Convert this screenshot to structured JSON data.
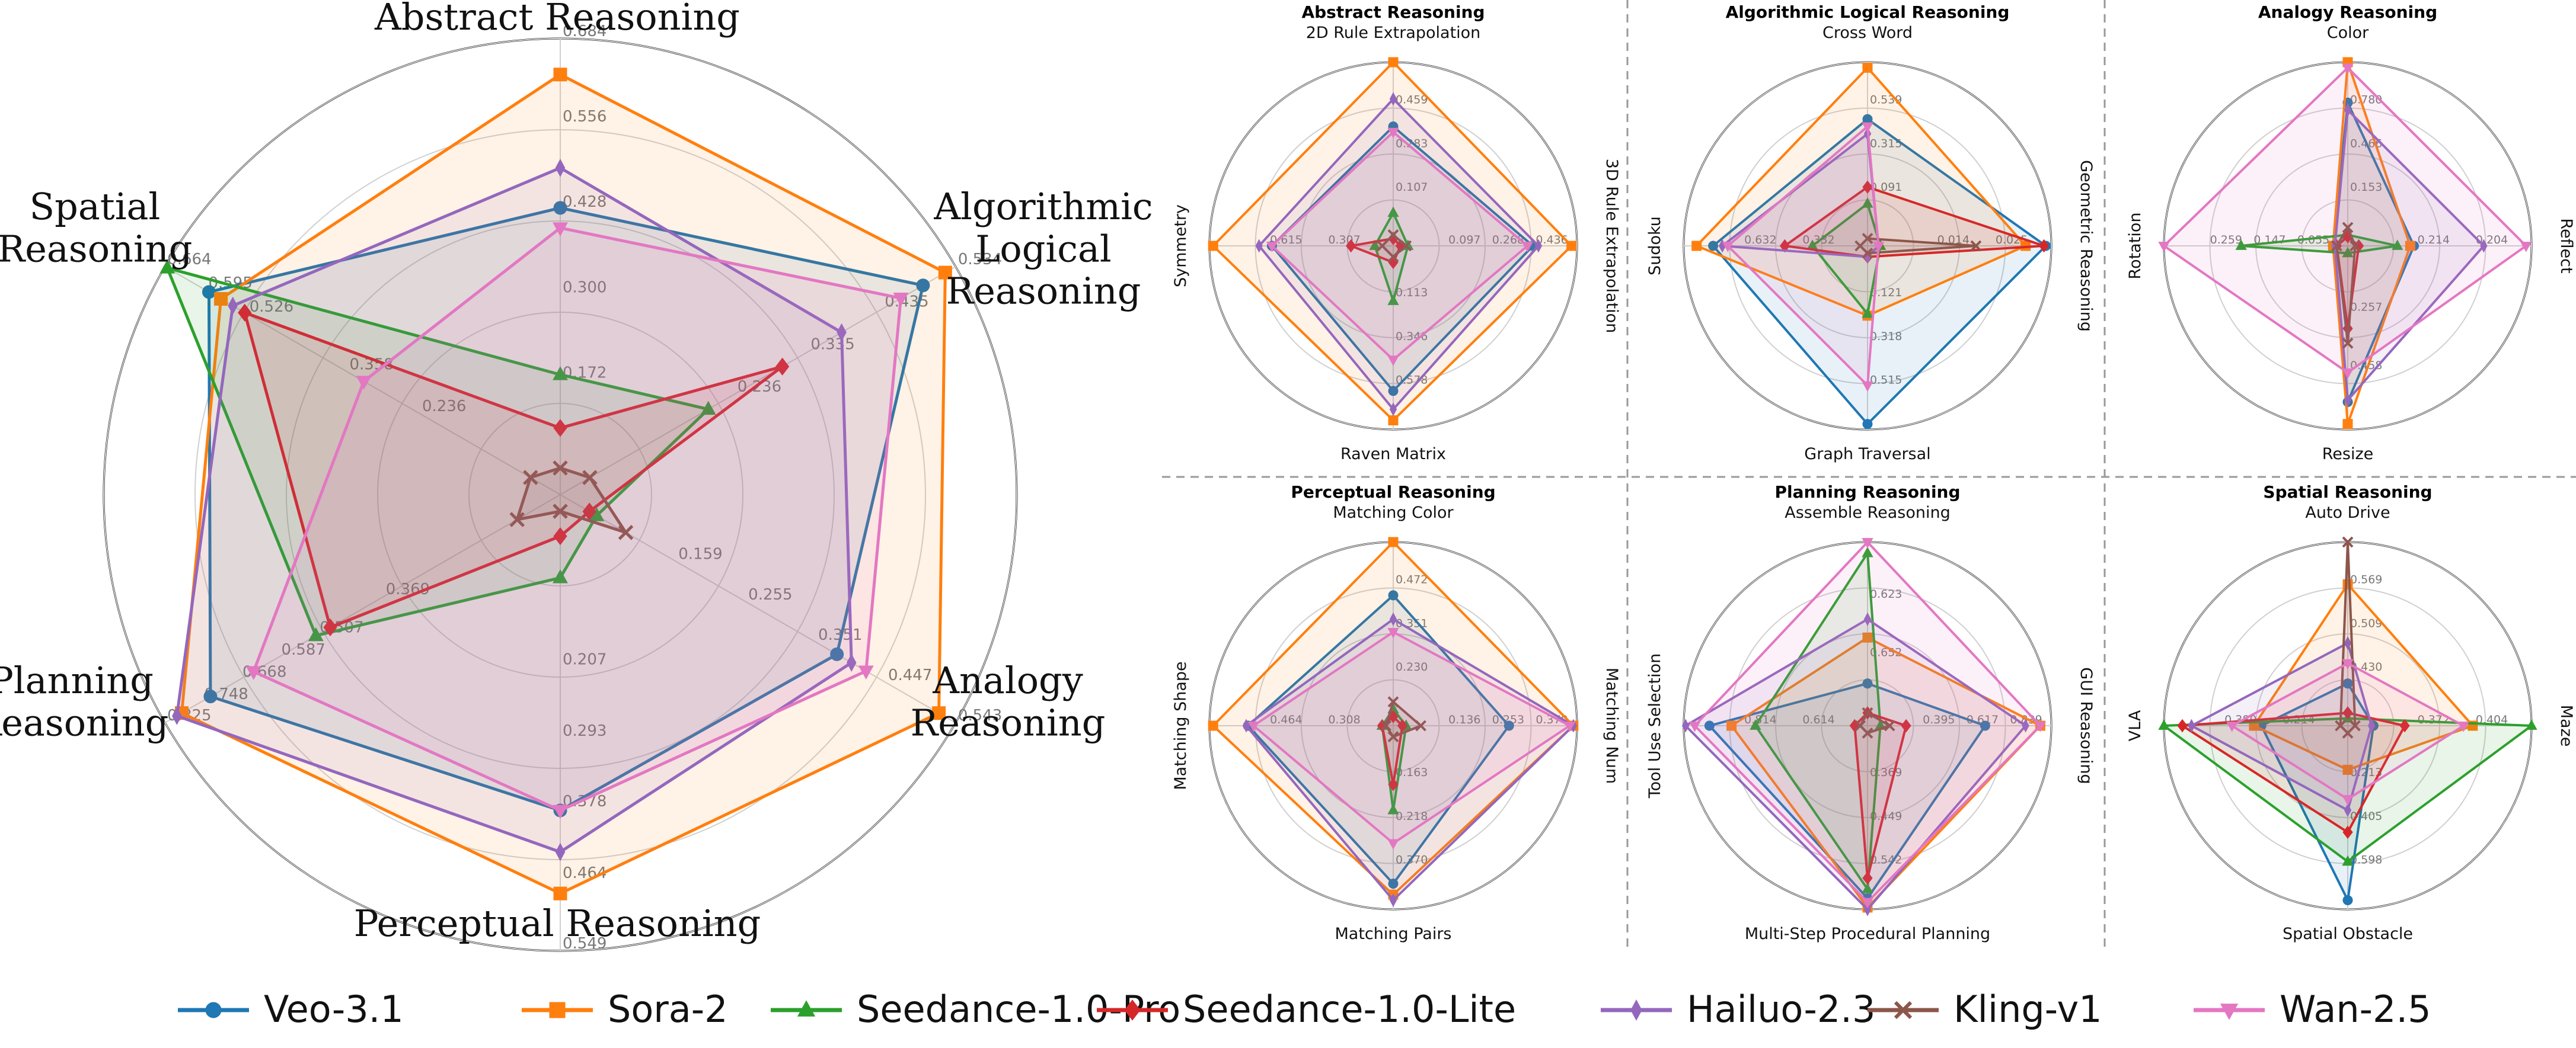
{
  "colors": {
    "Veo-3.1": "#1f77b4",
    "Sora-2": "#ff7f0e",
    "Seedance-1.0-Pro": "#2ca02c",
    "Seedance-1.0-Lite": "#d62728",
    "Hailuo-2.3": "#9467bd",
    "Kling-v1": "#8c564b",
    "Wan-2.5": "#e377c2"
  },
  "markers": {
    "Veo-3.1": "circle",
    "Sora-2": "square",
    "Seedance-1.0-Pro": "triangle-up",
    "Seedance-1.0-Lite": "diamond",
    "Hailuo-2.3": "diamond-thin",
    "Kling-v1": "x-cross",
    "Wan-2.5": "triangle-down"
  },
  "legend": {
    "items": [
      "Veo-3.1",
      "Sora-2",
      "Seedance-1.0-Pro",
      "Seedance-1.0-Lite",
      "Hailuo-2.3",
      "Kling-v1",
      "Wan-2.5"
    ],
    "placement": "bottom-center"
  },
  "chart_data": [
    {
      "type": "radar",
      "title": "",
      "axes": [
        "Abstract Reasoning",
        "Algorithmic Logical Reasoning",
        "Analogy Reasoning",
        "Perceptual Reasoning",
        "Planning Reasoning",
        "Spatial Reasoning"
      ],
      "axis_max": [
        0.684,
        0.534,
        0.543,
        0.549,
        0.825,
        0.664
      ],
      "tick_labels": [
        [
          "0.172",
          "0.300",
          "0.428",
          "0.556",
          "0.684"
        ],
        [
          "0.236",
          "0.335",
          "0.435",
          "0.534"
        ],
        [
          "0.159",
          "0.255",
          "0.351",
          "0.447",
          "0.543"
        ],
        [
          "0.207",
          "0.293",
          "0.378",
          "0.464",
          "0.549"
        ],
        [
          "0.369",
          "0.507",
          "0.587",
          "0.668",
          "0.748",
          "0.825"
        ],
        [
          "0.236",
          "0.358",
          "0.526",
          "0.595",
          "0.664"
        ]
      ],
      "series": [
        {
          "name": "Veo-3.1",
          "values": [
            0.43,
            0.49,
            0.38,
            0.38,
            0.73,
            0.59
          ]
        },
        {
          "name": "Sora-2",
          "values": [
            0.63,
            0.52,
            0.52,
            0.48,
            0.79,
            0.57
          ]
        },
        {
          "name": "Seedance-1.0-Pro",
          "values": [
            0.18,
            0.2,
            0.05,
            0.1,
            0.51,
            0.66
          ]
        },
        {
          "name": "Seedance-1.0-Lite",
          "values": [
            0.1,
            0.3,
            0.04,
            0.05,
            0.48,
            0.53
          ]
        },
        {
          "name": "Hailuo-2.3",
          "values": [
            0.49,
            0.38,
            0.4,
            0.43,
            0.8,
            0.55
          ]
        },
        {
          "name": "Kling-v1",
          "values": [
            0.04,
            0.04,
            0.09,
            0.02,
            0.09,
            0.05
          ]
        },
        {
          "name": "Wan-2.5",
          "values": [
            0.4,
            0.46,
            0.42,
            0.38,
            0.64,
            0.33
          ]
        }
      ]
    },
    {
      "type": "radar",
      "title": "Abstract Reasoning",
      "axes": [
        "2D Rule Extrapolation",
        "3D Rule Extrapolation",
        "Raven Matrix",
        "Symmetry"
      ],
      "tick_labels": [
        [
          "0.107",
          "0.283",
          "0.459"
        ],
        [
          "0.097",
          "0.268",
          "0.436"
        ],
        [
          "0.113",
          "0.346",
          "0.578"
        ],
        [
          "0.307",
          "0.615"
        ]
      ],
      "series": [
        {
          "name": "Veo-3.1",
          "values": [
            0.65,
            0.76,
            0.79,
            0.66
          ]
        },
        {
          "name": "Sora-2",
          "values": [
            1.0,
            0.97,
            0.95,
            0.98
          ]
        },
        {
          "name": "Seedance-1.0-Pro",
          "values": [
            0.18,
            0.08,
            0.3,
            0.1
          ]
        },
        {
          "name": "Seedance-1.0-Lite",
          "values": [
            0.04,
            0.04,
            0.09,
            0.23
          ]
        },
        {
          "name": "Hailuo-2.3",
          "values": [
            0.8,
            0.79,
            0.89,
            0.73
          ]
        },
        {
          "name": "Kling-v1",
          "values": [
            0.06,
            0.07,
            0.06,
            0.06
          ]
        },
        {
          "name": "Wan-2.5",
          "values": [
            0.62,
            0.73,
            0.62,
            0.66
          ]
        }
      ]
    },
    {
      "type": "radar",
      "title": "Algorithmic Logical Reasoning",
      "axes": [
        "Cross Word",
        "Geometric Reasoning",
        "Graph Traversal",
        "Sudoku"
      ],
      "tick_labels": [
        [
          "0.091",
          "0.315",
          "0.539"
        ],
        [
          "0.014",
          "0.025"
        ],
        [
          "0.121",
          "0.318",
          "0.515"
        ],
        [
          "0.332",
          "0.632"
        ]
      ],
      "series": [
        {
          "name": "Veo-3.1",
          "values": [
            0.69,
            0.97,
            0.97,
            0.84
          ]
        },
        {
          "name": "Sora-2",
          "values": [
            0.97,
            0.86,
            0.38,
            0.93
          ]
        },
        {
          "name": "Seedance-1.0-Pro",
          "values": [
            0.23,
            0.07,
            0.37,
            0.3
          ]
        },
        {
          "name": "Seedance-1.0-Lite",
          "values": [
            0.32,
            0.96,
            0.06,
            0.45
          ]
        },
        {
          "name": "Hailuo-2.3",
          "values": [
            0.61,
            0.06,
            0.06,
            0.79
          ]
        },
        {
          "name": "Kling-v1",
          "values": [
            0.04,
            0.59,
            0.04,
            0.04
          ]
        },
        {
          "name": "Wan-2.5",
          "values": [
            0.65,
            0.06,
            0.76,
            0.76
          ]
        }
      ]
    },
    {
      "type": "radar",
      "title": "Analogy Reasoning",
      "axes": [
        "Color",
        "Reflect",
        "Resize",
        "Rotation"
      ],
      "tick_labels": [
        [
          "0.153",
          "0.466",
          "0.780"
        ],
        [
          "0.214",
          "0.204"
        ],
        [
          "0.257",
          "0.458"
        ],
        [
          "0.055",
          "0.147",
          "0.259"
        ]
      ],
      "series": [
        {
          "name": "Veo-3.1",
          "values": [
            0.78,
            0.36,
            0.85,
            0.08
          ]
        },
        {
          "name": "Sora-2",
          "values": [
            1.0,
            0.34,
            0.97,
            0.08
          ]
        },
        {
          "name": "Seedance-1.0-Pro",
          "values": [
            0.06,
            0.27,
            0.04,
            0.58
          ]
        },
        {
          "name": "Seedance-1.0-Lite",
          "values": [
            0.05,
            0.06,
            0.45,
            0.06
          ]
        },
        {
          "name": "Hailuo-2.3",
          "values": [
            0.74,
            0.74,
            0.84,
            0.07
          ]
        },
        {
          "name": "Kling-v1",
          "values": [
            0.1,
            0.04,
            0.53,
            0.06
          ]
        },
        {
          "name": "Wan-2.5",
          "values": [
            0.97,
            0.97,
            0.69,
            1.0
          ]
        }
      ]
    },
    {
      "type": "radar",
      "title": "Perceptual Reasoning",
      "axes": [
        "Matching Color",
        "Matching Num",
        "Matching Pairs",
        "Matching Shape"
      ],
      "tick_labels": [
        [
          "0.230",
          "0.351",
          "0.472"
        ],
        [
          "0.136",
          "0.253",
          "0.370"
        ],
        [
          "0.163",
          "0.218",
          "0.370"
        ],
        [
          "0.308",
          "0.464"
        ]
      ],
      "series": [
        {
          "name": "Veo-3.1",
          "values": [
            0.71,
            0.63,
            0.86,
            0.79
          ]
        },
        {
          "name": "Sora-2",
          "values": [
            1.0,
            0.98,
            0.92,
            0.98
          ]
        },
        {
          "name": "Seedance-1.0-Pro",
          "values": [
            0.09,
            0.07,
            0.46,
            0.06
          ]
        },
        {
          "name": "Seedance-1.0-Lite",
          "values": [
            0.05,
            0.05,
            0.32,
            0.06
          ]
        },
        {
          "name": "Hailuo-2.3",
          "values": [
            0.58,
            0.98,
            0.95,
            0.8
          ]
        },
        {
          "name": "Kling-v1",
          "values": [
            0.13,
            0.15,
            0.06,
            0.04
          ]
        },
        {
          "name": "Wan-2.5",
          "values": [
            0.51,
            0.96,
            0.64,
            0.76
          ]
        }
      ]
    },
    {
      "type": "radar",
      "title": "Planning Reasoning",
      "axes": [
        "Assemble Reasoning",
        "GUI Reasoning",
        "Multi-Step Procedural Planning",
        "Tool Use Selection"
      ],
      "tick_labels": [
        [
          "0.652",
          "0.623"
        ],
        [
          "0.395",
          "0.617",
          "0.839"
        ],
        [
          "0.369",
          "0.449",
          "0.542"
        ],
        [
          "0.614",
          "0.814"
        ]
      ],
      "series": [
        {
          "name": "Veo-3.1",
          "values": [
            0.23,
            0.64,
            0.94,
            0.86
          ]
        },
        {
          "name": "Sora-2",
          "values": [
            0.48,
            0.94,
            0.99,
            0.74
          ]
        },
        {
          "name": "Seedance-1.0-Pro",
          "values": [
            0.94,
            0.07,
            0.89,
            0.61
          ]
        },
        {
          "name": "Seedance-1.0-Lite",
          "values": [
            0.07,
            0.21,
            0.83,
            0.07
          ]
        },
        {
          "name": "Hailuo-2.3",
          "values": [
            0.58,
            0.86,
            1.0,
            0.99
          ]
        },
        {
          "name": "Kling-v1",
          "values": [
            0.07,
            0.12,
            0.04,
            0.04
          ]
        },
        {
          "name": "Wan-2.5",
          "values": [
            1.0,
            0.94,
            0.96,
            0.94
          ]
        }
      ]
    },
    {
      "type": "radar",
      "title": "Spatial Reasoning",
      "axes": [
        "Auto Drive",
        "Maze",
        "Spatial Obstacle",
        "VLA"
      ],
      "tick_labels": [
        [
          "0.430",
          "0.509",
          "0.569"
        ],
        [
          "0.372",
          "0.404"
        ],
        [
          "0.213",
          "0.405",
          "0.598"
        ],
        [
          "0.214",
          "0.380"
        ]
      ],
      "series": [
        {
          "name": "Veo-3.1",
          "values": [
            0.23,
            0.14,
            0.95,
            0.47
          ]
        },
        {
          "name": "Sora-2",
          "values": [
            0.77,
            0.68,
            0.24,
            0.51
          ]
        },
        {
          "name": "Seedance-1.0-Pro",
          "values": [
            0.04,
            1.0,
            0.74,
            1.0
          ]
        },
        {
          "name": "Seedance-1.0-Lite",
          "values": [
            0.07,
            0.31,
            0.58,
            0.9
          ]
        },
        {
          "name": "Hailuo-2.3",
          "values": [
            0.45,
            0.13,
            0.46,
            0.85
          ]
        },
        {
          "name": "Kling-v1",
          "values": [
            1.0,
            0.04,
            0.04,
            0.04
          ]
        },
        {
          "name": "Wan-2.5",
          "values": [
            0.34,
            0.63,
            0.4,
            0.63
          ]
        }
      ]
    }
  ]
}
